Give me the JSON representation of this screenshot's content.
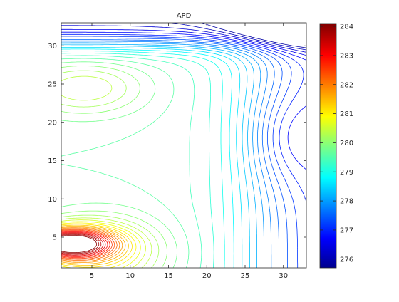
{
  "chart_data": {
    "type": "contour",
    "title": "APD",
    "xlabel": "",
    "ylabel": "",
    "xlim": [
      1,
      33
    ],
    "ylim": [
      1,
      33
    ],
    "x_ticks": [
      5,
      10,
      15,
      20,
      25,
      30
    ],
    "y_ticks": [
      5,
      10,
      15,
      20,
      25,
      30
    ],
    "colorbar": {
      "range": [
        275.7,
        284.1
      ],
      "ticks": [
        276,
        277,
        278,
        279,
        280,
        281,
        282,
        283,
        284
      ],
      "colormap": "jet"
    },
    "contour_levels": {
      "min": 276.0,
      "max": 284.0,
      "step": 0.2
    },
    "field_samples": [
      {
        "x": 3,
        "y": 4,
        "value": 284.0
      },
      {
        "x": 10,
        "y": 3,
        "value": 281.5
      },
      {
        "x": 5,
        "y": 24,
        "value": 280.8
      },
      {
        "x": 18,
        "y": 18,
        "value": 279.5
      },
      {
        "x": 28,
        "y": 20,
        "value": 277.8
      },
      {
        "x": 32,
        "y": 5,
        "value": 276.3
      },
      {
        "x": 20,
        "y": 32,
        "value": 276.2
      }
    ],
    "grid": false
  }
}
